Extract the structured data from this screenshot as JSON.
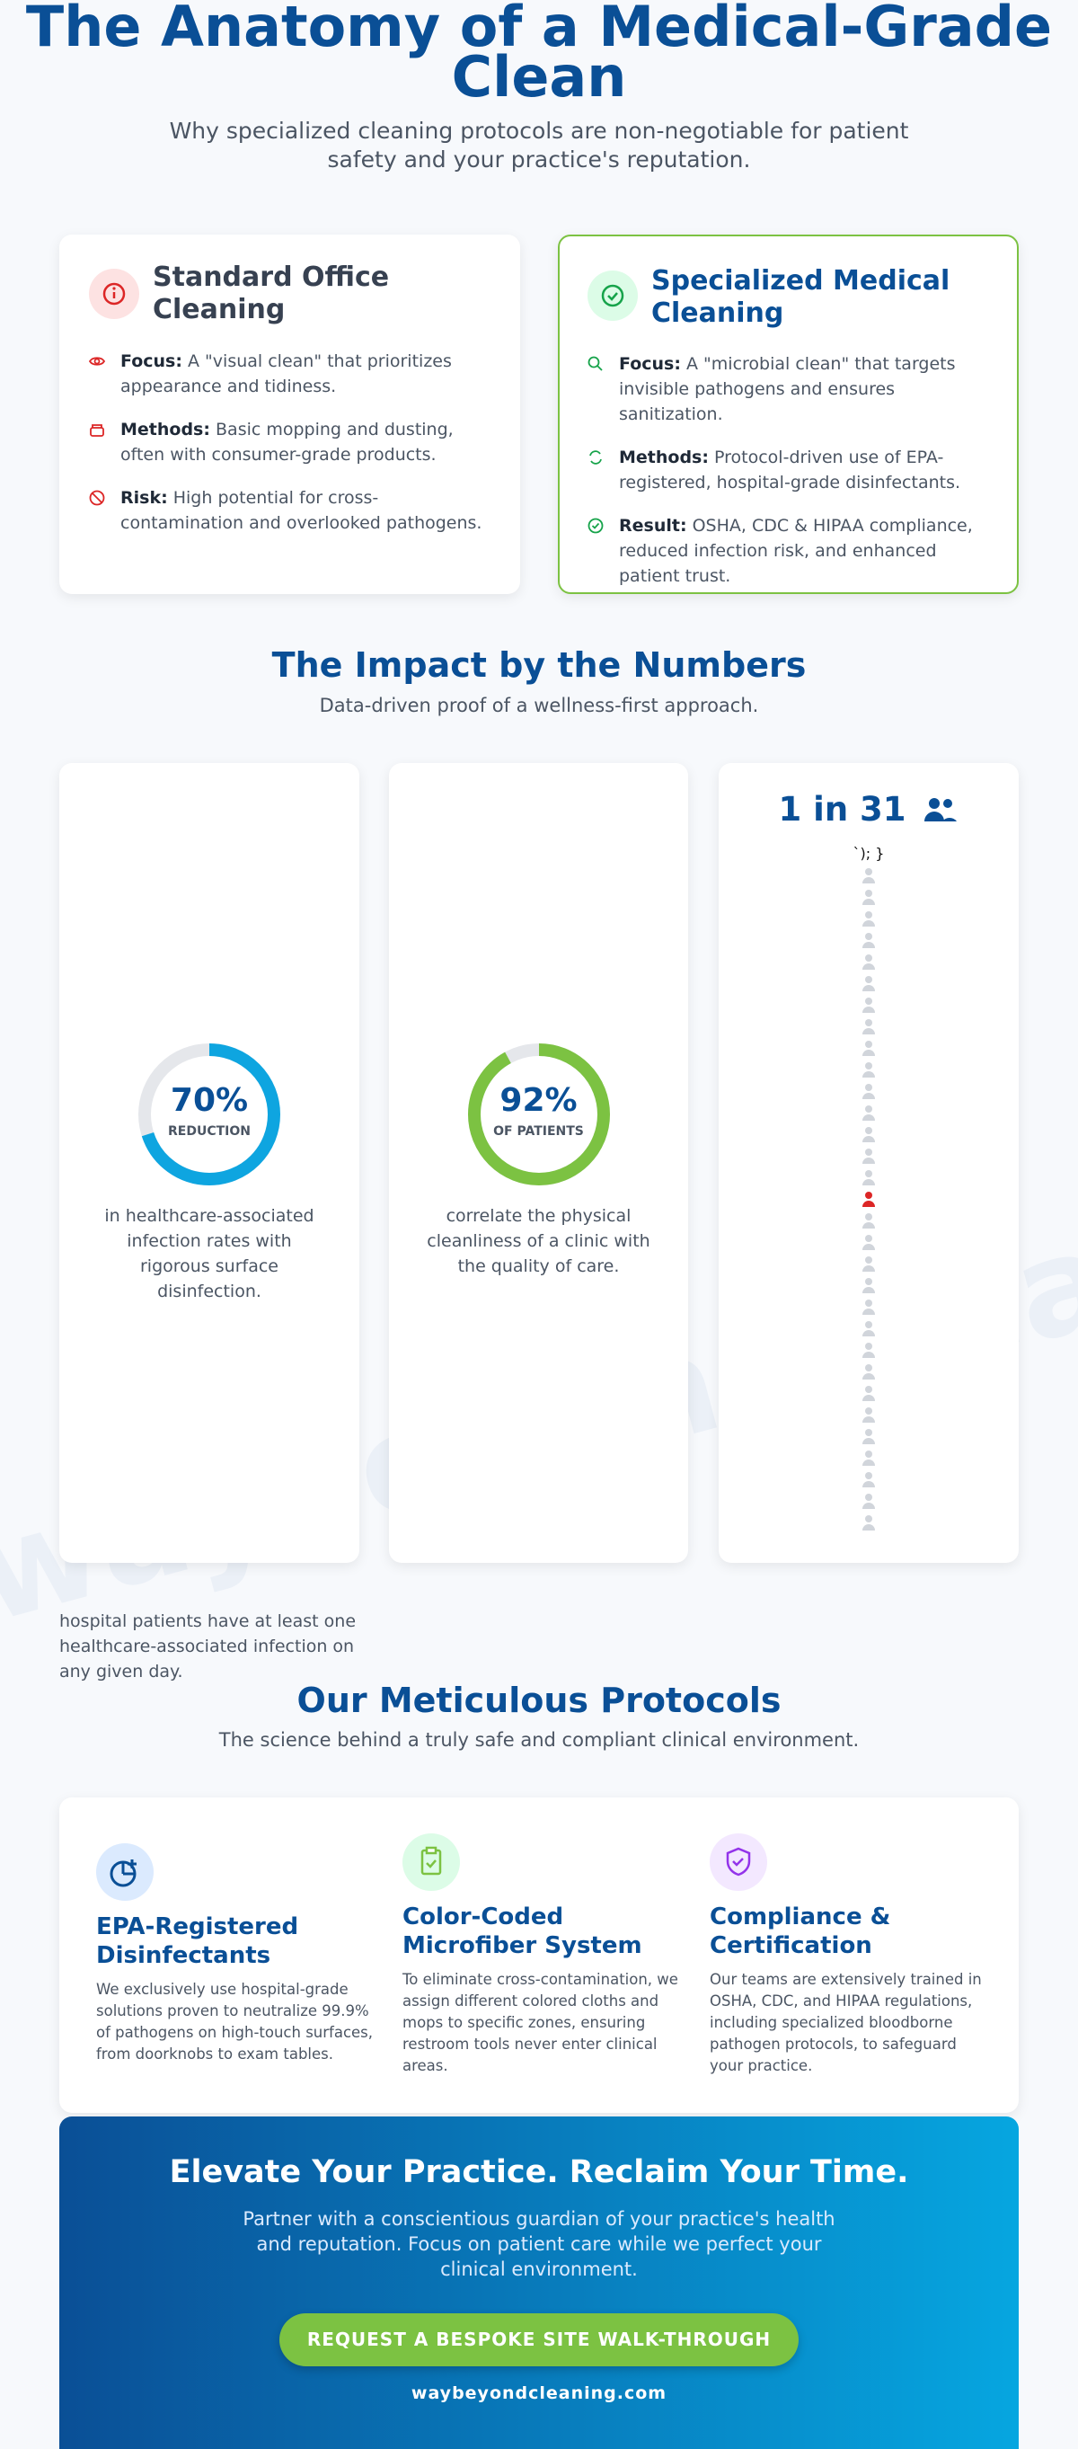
{
  "header": {
    "title": "The Anatomy of a Medical-Grade Clean",
    "subtitle": "Why specialized cleaning protocols are non-negotiable for patient safety and your practice's reputation."
  },
  "comparison": [
    {
      "title": "Standard Office Cleaning",
      "items": [
        {
          "label": "Focus:",
          "text": "A \"visual clean\" that prioritizes appearance and tidiness."
        },
        {
          "label": "Methods:",
          "text": "Basic mopping and dusting, often with consumer-grade products."
        },
        {
          "label": "Risk:",
          "text": "High potential for cross-contamination and overlooked pathogens."
        }
      ]
    },
    {
      "title": "Specialized Medical Cleaning",
      "items": [
        {
          "label": "Focus:",
          "text": "A \"microbial clean\" that targets invisible pathogens and ensures sanitization."
        },
        {
          "label": "Methods:",
          "text": "Protocol-driven use of EPA-registered, hospital-grade disinfectants."
        },
        {
          "label": "Result:",
          "text": "OSHA, CDC & HIPAA compliance, reduced infection risk, and enhanced patient trust."
        }
      ]
    }
  ],
  "impact": {
    "title": "The Impact by the Numbers",
    "subtitle": "Data-driven proof of a wellness-first approach.",
    "stats": [
      {
        "value": 70,
        "value_label": "70%",
        "unit": "REDUCTION",
        "text": "in healthcare-associated infection rates with rigorous surface disinfection."
      },
      {
        "value": 92,
        "value_label": "92%",
        "unit": "OF PATIENTS",
        "text": "correlate the physical cleanliness of a clinic with the quality of care."
      },
      {
        "headline": "1 in 31",
        "total": 31,
        "artifact": "`); }",
        "text": "hospital patients have at least one healthcare-associated infection on any given day."
      }
    ]
  },
  "protocols": {
    "title": "Our Meticulous Protocols",
    "subtitle": "The science behind a truly safe and compliant clinical environment.",
    "items": [
      {
        "title": "EPA-Registered Disinfectants",
        "text": "We exclusively use hospital-grade solutions proven to neutralize 99.9% of pathogens on high-touch surfaces, from doorknobs to exam tables."
      },
      {
        "title": "Color-Coded Microfiber System",
        "text": "To eliminate cross-contamination, we assign different colored cloths and mops to specific zones, ensuring restroom tools never enter clinical areas."
      },
      {
        "title": "Compliance & Certification",
        "text": "Our teams are extensively trained in OSHA, CDC, and HIPAA regulations, including specialized bloodborne pathogen protocols, to safeguard your practice."
      }
    ]
  },
  "cta": {
    "title": "Elevate Your Practice. Reclaim Your Time.",
    "text": "Partner with a conscientious guardian of your practice's health and reputation. Focus on patient care while we perfect your clinical environment.",
    "button": "REQUEST A BESPOKE SITE WALK-THROUGH",
    "url": "waybeyondcleaning.com"
  }
}
